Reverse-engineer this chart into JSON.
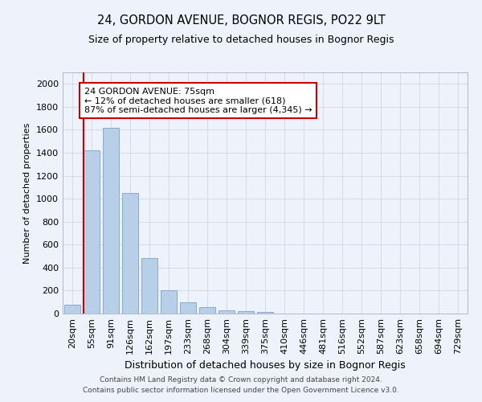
{
  "title": "24, GORDON AVENUE, BOGNOR REGIS, PO22 9LT",
  "subtitle": "Size of property relative to detached houses in Bognor Regis",
  "xlabel": "Distribution of detached houses by size in Bognor Regis",
  "ylabel": "Number of detached properties",
  "categories": [
    "20sqm",
    "55sqm",
    "91sqm",
    "126sqm",
    "162sqm",
    "197sqm",
    "233sqm",
    "268sqm",
    "304sqm",
    "339sqm",
    "375sqm",
    "410sqm",
    "446sqm",
    "481sqm",
    "516sqm",
    "552sqm",
    "587sqm",
    "623sqm",
    "658sqm",
    "694sqm",
    "729sqm"
  ],
  "values": [
    75,
    1420,
    1620,
    1050,
    480,
    200,
    100,
    55,
    30,
    20,
    15,
    0,
    0,
    0,
    0,
    0,
    0,
    0,
    0,
    0,
    0
  ],
  "bar_color": "#b8cfe8",
  "bar_edge_color": "#88aad0",
  "vline_x": 0.575,
  "vline_color": "#cc0000",
  "annotation_text": "24 GORDON AVENUE: 75sqm\n← 12% of detached houses are smaller (618)\n87% of semi-detached houses are larger (4,345) →",
  "annotation_box_color": "#ffffff",
  "annotation_box_edge": "#cc0000",
  "ylim": [
    0,
    2100
  ],
  "yticks": [
    0,
    200,
    400,
    600,
    800,
    1000,
    1200,
    1400,
    1600,
    1800,
    2000
  ],
  "footer1": "Contains HM Land Registry data © Crown copyright and database right 2024.",
  "footer2": "Contains public sector information licensed under the Open Government Licence v3.0.",
  "bg_color": "#eef2fb",
  "plot_bg_color": "#eef2fb",
  "grid_color": "#c8d0e0"
}
